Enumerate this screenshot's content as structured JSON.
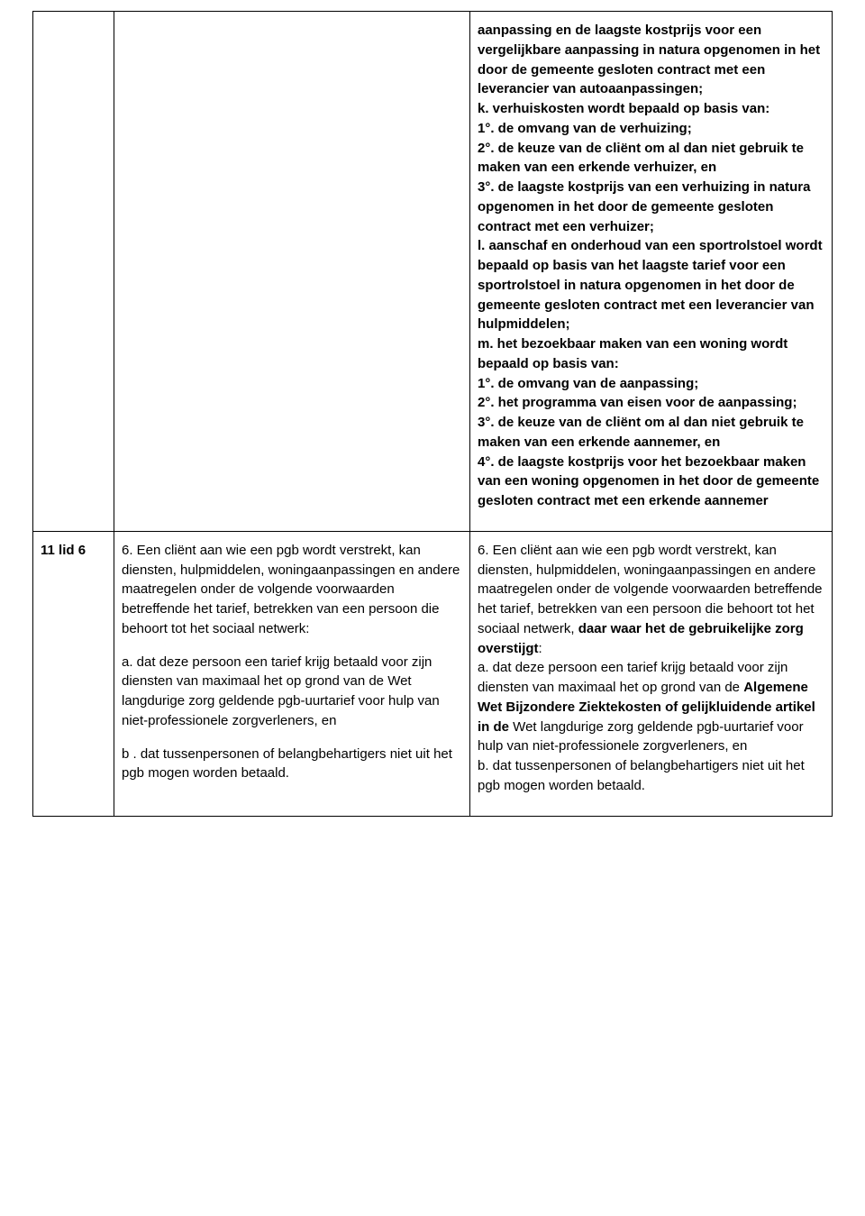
{
  "row1": {
    "col3": {
      "j_intro": "aanpassing en de laagste kostprijs voor een vergelijkbare aanpassing in natura opgenomen in het door de gemeente gesloten contract met een leverancier van autoaanpassingen;",
      "k": "k. verhuiskosten wordt bepaald op basis van:",
      "k1": "1°. de omvang van de verhuizing;",
      "k2": "2°. de keuze van de cliënt om al dan niet gebruik te maken van een erkende verhuizer, en",
      "k3": "3°. de laagste kostprijs van een verhuizing in natura opgenomen in het door de gemeente gesloten contract met een verhuizer;",
      "l": "l. aanschaf en onderhoud van een sportrolstoel wordt bepaald op basis van het laagste tarief voor een sportrolstoel in natura opgenomen in het door de gemeente gesloten contract met een leverancier van hulpmiddelen;",
      "m": "m. het bezoekbaar maken van een woning wordt bepaald op basis van:",
      "m1": "1°. de omvang van de aanpassing;",
      "m2": "2°. het programma van eisen voor de aanpassing;",
      "m3": "3°. de keuze van de cliënt om al dan niet gebruik te maken van een erkende aannemer, en",
      "m4": "4°. de laagste kostprijs voor het bezoekbaar maken van een woning opgenomen in het door de gemeente gesloten contract met een erkende aannemer"
    }
  },
  "row2": {
    "article": "11 lid 6",
    "col2": {
      "p6": "6. Een cliënt aan wie een pgb wordt verstrekt, kan diensten, hulpmiddelen, woningaanpassingen en andere maatregelen onder de volgende voorwaarden betreffende het tarief, betrekken van een persoon die behoort tot het sociaal netwerk:",
      "a": "a. dat deze persoon een tarief krijg betaald voor zijn diensten van maximaal het op grond van de Wet langdurige zorg geldende pgb-uurtarief voor hulp van niet-professionele zorgverleners, en",
      "b": "b . dat tussenpersonen of belangbehartigers niet uit het pgb mogen worden betaald."
    },
    "col3": {
      "p6_prefix": "6. Een cliënt aan wie een pgb wordt verstrekt, kan diensten, hulpmiddelen, woningaanpassingen en andere maatregelen onder de volgende voorwaarden betreffende het tarief, betrekken van een persoon die behoort tot het sociaal netwerk, ",
      "p6_bold": "daar waar het de gebruikelijke zorg overstijgt",
      "p6_suffix": ":",
      "a_prefix": "a. dat deze persoon een tarief krijg betaald voor zijn diensten van maximaal het op grond van de ",
      "a_bold": "Algemene Wet Bijzondere Ziektekosten of gelijkluidende artikel in de",
      "a_suffix": " Wet langdurige zorg geldende pgb-uurtarief voor hulp van niet-professionele zorgverleners, en",
      "b": "b. dat tussenpersonen of belangbehartigers niet uit het pgb mogen worden betaald."
    }
  }
}
